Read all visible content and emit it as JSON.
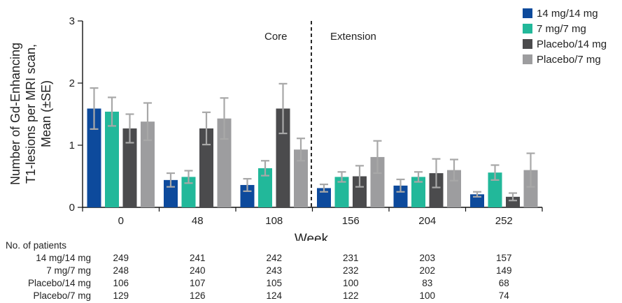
{
  "chart_data": {
    "type": "bar",
    "xlabel": "Week",
    "ylabel": [
      "Number of Gd-Enhancing",
      "T1-lesions per MRI scan,",
      "Mean (±SE)"
    ],
    "ylim": [
      0,
      3
    ],
    "yticks": [
      "0",
      "1",
      "2",
      "3"
    ],
    "categories": [
      "0",
      "48",
      "108",
      "156",
      "204",
      "252"
    ],
    "phases": [
      "Core",
      "Extension"
    ],
    "legend_position": "top-right",
    "series": [
      {
        "name": "14 mg/14 mg",
        "color": "#0d4a9c",
        "values": [
          1.59,
          0.44,
          0.36,
          0.31,
          0.35,
          0.21
        ],
        "se": [
          0.33,
          0.11,
          0.1,
          0.06,
          0.1,
          0.04
        ]
      },
      {
        "name": "7 mg/7 mg",
        "color": "#22b89a",
        "values": [
          1.54,
          0.49,
          0.63,
          0.49,
          0.49,
          0.56
        ],
        "se": [
          0.23,
          0.1,
          0.12,
          0.08,
          0.08,
          0.12
        ]
      },
      {
        "name": "Placebo/14 mg",
        "color": "#4b4b4d",
        "values": [
          1.27,
          1.27,
          1.59,
          0.5,
          0.55,
          0.17
        ],
        "se": [
          0.23,
          0.26,
          0.4,
          0.17,
          0.23,
          0.06
        ]
      },
      {
        "name": "Placebo/7 mg",
        "color": "#9d9d9f",
        "values": [
          1.38,
          1.43,
          0.93,
          0.81,
          0.6,
          0.6
        ],
        "se": [
          0.3,
          0.33,
          0.18,
          0.26,
          0.17,
          0.27
        ]
      }
    ]
  },
  "patients": {
    "title": "No. of patients",
    "rows": [
      {
        "label": "14 mg/14 mg",
        "values": [
          "249",
          "241",
          "242",
          "231",
          "203",
          "157"
        ]
      },
      {
        "label": "7 mg/7 mg",
        "values": [
          "248",
          "240",
          "243",
          "232",
          "202",
          "149"
        ]
      },
      {
        "label": "Placebo/14 mg",
        "values": [
          "106",
          "107",
          "105",
          "100",
          "83",
          "68"
        ]
      },
      {
        "label": "Placebo/7 mg",
        "values": [
          "129",
          "126",
          "124",
          "122",
          "100",
          "74"
        ]
      }
    ]
  }
}
